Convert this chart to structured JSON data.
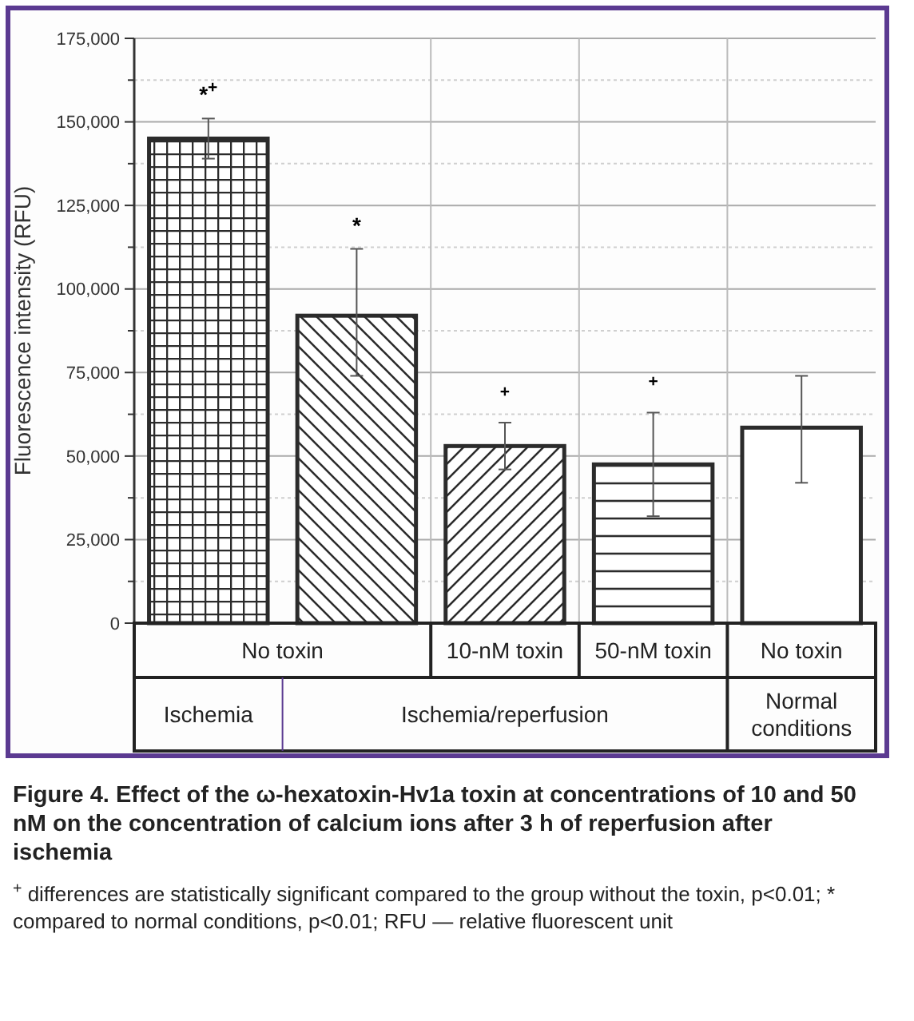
{
  "chart_data": {
    "type": "bar",
    "title": "Figure 4. Effect of the ω-hexatoxin-Hv1a toxin at concentrations of 10 and 50 nM on the concentration of calcium ions after 3 h of reperfusion after ischemia",
    "ylabel": "Fluorescence intensity (RFU)",
    "categories": [
      "No toxin",
      null,
      "10-nM toxin",
      "50-nM toxin",
      "No toxin"
    ],
    "values": [
      145000,
      92000,
      53000,
      47500,
      58500
    ],
    "errors": [
      [
        139000,
        151000
      ],
      [
        74000,
        112000
      ],
      [
        46000,
        60000
      ],
      [
        32000,
        63000
      ],
      [
        42000,
        74000
      ]
    ],
    "color": "#2b2b2b",
    "ylim": [
      0,
      175000
    ],
    "yticks": [
      0,
      {
        "value": 12500,
        "label": null
      },
      {
        "value": 25000,
        "label": "25,000"
      },
      {
        "value": 37500,
        "label": null
      },
      {
        "value": 50000,
        "label": "50,000"
      },
      {
        "value": 62500,
        "label": null
      },
      {
        "value": 75000,
        "label": "75,000"
      },
      {
        "value": 87500,
        "label": null
      },
      {
        "value": 100000,
        "label": "100,000"
      },
      {
        "value": 112500,
        "label": null
      },
      {
        "value": 125000,
        "label": "125,000"
      },
      {
        "value": 137500,
        "label": null
      },
      {
        "value": 150000,
        "label": "150,000"
      },
      {
        "value": 162500,
        "label": null
      },
      {
        "value": 175000,
        "label": "175,000"
      }
    ],
    "grid": "y",
    "annotations": [
      "Ischemia",
      "Ischemia/reperfusion",
      "Normal conditions",
      "*$^{+}$",
      "*",
      "$^{+}$",
      "$^{+}$",
      "$^{+}$ differences are statistically significant compared to the group without the toxin, p<0.01; * compared to normal conditions, p<0.01; RFU — relative fluorescent unit"
    ]
  }
}
